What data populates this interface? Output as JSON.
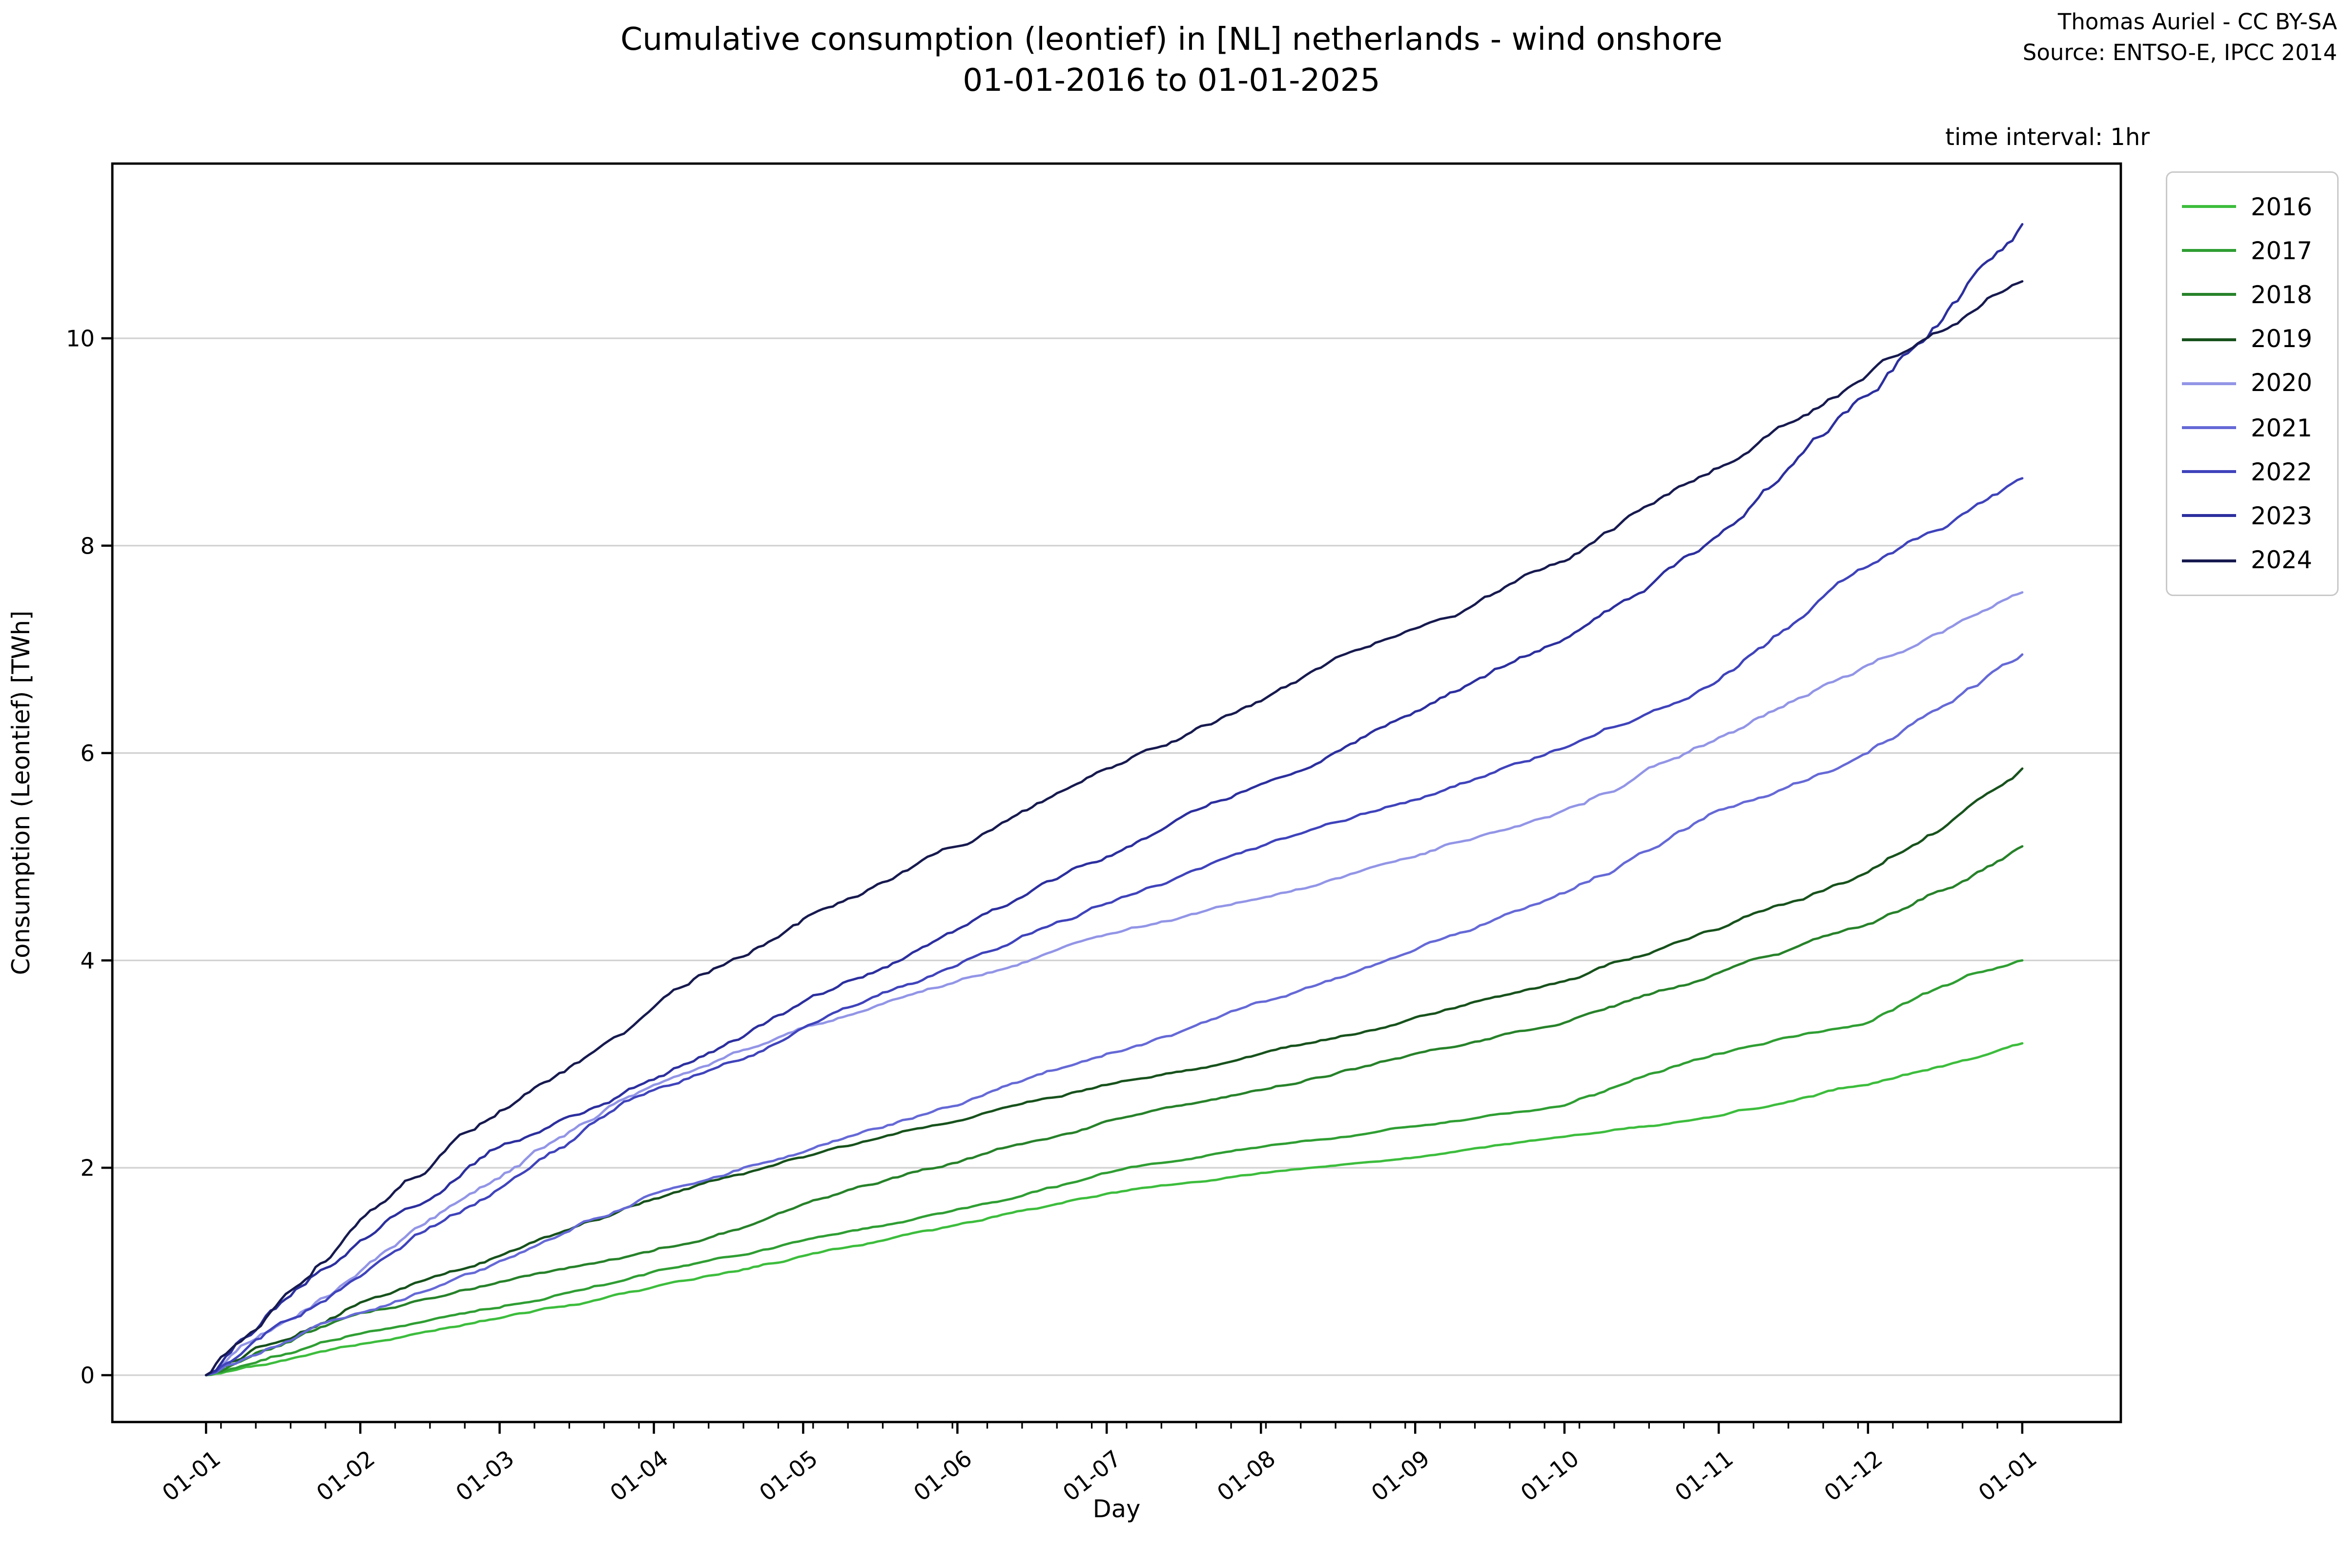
{
  "header": {
    "title_line1": "Cumulative consumption (leontief) in [NL] netherlands - wind onshore",
    "title_line2": "01-01-2016 to 01-01-2025",
    "attribution_line1": "Thomas Auriel - CC BY-SA",
    "attribution_line2": "Source: ENTSO-E, IPCC 2014",
    "legend_note": "time interval: 1hr"
  },
  "chart_data": {
    "type": "line",
    "title": "Cumulative consumption (leontief) in [NL] netherlands - wind onshore 01-01-2016 to 01-01-2025",
    "xlabel": "Day",
    "ylabel": "Consumption (Leontief) [TWh]",
    "legend_title": "time interval: 1hr",
    "legend_position": "outside upper right",
    "grid": "horizontal",
    "yticks": [
      0,
      2,
      4,
      6,
      8,
      10
    ],
    "ylim": [
      -0.45,
      11.68
    ],
    "xlim_days": [
      -18.8,
      384.7
    ],
    "x_tick_labels": [
      "01-01",
      "01-02",
      "01-03",
      "01-04",
      "01-05",
      "01-06",
      "01-07",
      "01-08",
      "01-09",
      "01-10",
      "01-11",
      "01-12",
      "01-01"
    ],
    "x_tick_days": [
      0,
      31,
      59,
      90,
      120,
      151,
      181,
      212,
      243,
      273,
      304,
      334,
      365
    ],
    "minor_tick_every_days": 7,
    "anchor_days": [
      0,
      31,
      59,
      90,
      120,
      151,
      181,
      212,
      243,
      273,
      304,
      334,
      365
    ],
    "series": [
      {
        "name": "2016",
        "color": "#3dbd3d",
        "monthly_cumulative_twh": [
          0,
          0.3,
          0.55,
          0.85,
          1.15,
          1.45,
          1.75,
          1.95,
          2.1,
          2.3,
          2.5,
          2.8,
          3.2
        ]
      },
      {
        "name": "2017",
        "color": "#2f9e33",
        "monthly_cumulative_twh": [
          0,
          0.4,
          0.65,
          1.0,
          1.3,
          1.6,
          1.95,
          2.2,
          2.4,
          2.6,
          3.1,
          3.4,
          4.0
        ]
      },
      {
        "name": "2018",
        "color": "#27822a",
        "monthly_cumulative_twh": [
          0,
          0.6,
          0.9,
          1.2,
          1.65,
          2.05,
          2.45,
          2.75,
          3.1,
          3.4,
          3.88,
          4.35,
          5.1
        ]
      },
      {
        "name": "2019",
        "color": "#17521c",
        "monthly_cumulative_twh": [
          0,
          0.7,
          1.15,
          1.7,
          2.1,
          2.45,
          2.8,
          3.1,
          3.45,
          3.8,
          4.3,
          4.85,
          5.85
        ]
      },
      {
        "name": "2020",
        "color": "#9295e6",
        "monthly_cumulative_twh": [
          0,
          1.0,
          1.9,
          2.8,
          3.35,
          3.8,
          4.25,
          4.6,
          5.0,
          5.45,
          6.15,
          6.85,
          7.55
        ]
      },
      {
        "name": "2021",
        "color": "#6569d6",
        "monthly_cumulative_twh": [
          0,
          0.6,
          1.1,
          1.75,
          2.15,
          2.6,
          3.1,
          3.6,
          4.1,
          4.65,
          5.45,
          6.0,
          6.95
        ]
      },
      {
        "name": "2022",
        "color": "#3f43bb",
        "monthly_cumulative_twh": [
          0,
          0.95,
          1.8,
          2.75,
          3.35,
          3.95,
          4.55,
          5.1,
          5.55,
          6.05,
          6.7,
          7.8,
          8.65
        ]
      },
      {
        "name": "2023",
        "color": "#2c2f9e",
        "monthly_cumulative_twh": [
          0,
          1.3,
          2.2,
          2.85,
          3.6,
          4.3,
          5.0,
          5.7,
          6.4,
          7.1,
          8.1,
          9.45,
          11.1
        ]
      },
      {
        "name": "2024",
        "color": "#171a4f",
        "monthly_cumulative_twh": [
          0,
          1.5,
          2.55,
          3.55,
          4.4,
          5.1,
          5.85,
          6.5,
          7.2,
          7.85,
          8.75,
          9.65,
          10.55
        ]
      }
    ],
    "colors": {
      "grid": "#d2d2d2",
      "spine": "#000000",
      "background": "#ffffff"
    }
  }
}
